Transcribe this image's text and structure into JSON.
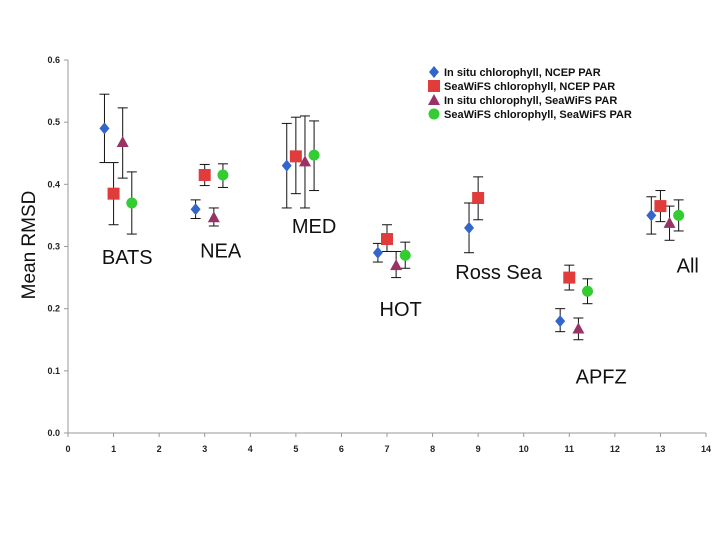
{
  "chart_data": {
    "type": "scatter",
    "title": "",
    "xlabel": "",
    "ylabel": "Mean RMSD",
    "xlim": [
      0,
      14
    ],
    "ylim": [
      0.0,
      0.6
    ],
    "x_ticks": [
      0,
      1,
      2,
      3,
      4,
      5,
      6,
      7,
      8,
      9,
      10,
      11,
      12,
      13,
      14
    ],
    "y_ticks": [
      0.0,
      0.1,
      0.2,
      0.3,
      0.4,
      0.5,
      0.6
    ],
    "x_tick_labels": [
      "0",
      "1",
      "2",
      "3",
      "4",
      "5",
      "6",
      "7",
      "8",
      "9",
      "10",
      "11",
      "12",
      "13",
      "14"
    ],
    "y_tick_labels": [
      "0.0",
      "0.1",
      "0.2",
      "0.3",
      "0.4",
      "0.5",
      "0.6"
    ],
    "grid": false,
    "legend_position": "top-right",
    "site_labels": [
      {
        "text": "BATS",
        "x": 1.3,
        "y": 0.272
      },
      {
        "text": "NEA",
        "x": 3.35,
        "y": 0.282
      },
      {
        "text": "MED",
        "x": 5.4,
        "y": 0.322
      },
      {
        "text": "HOT",
        "x": 7.3,
        "y": 0.188
      },
      {
        "text": "Ross Sea",
        "x": 9.45,
        "y": 0.248
      },
      {
        "text": "APFZ",
        "x": 11.7,
        "y": 0.08
      },
      {
        "text": "All",
        "x": 13.6,
        "y": 0.258
      }
    ],
    "series": [
      {
        "name": "In situ chlorophyll, NCEP PAR",
        "marker": "diamond",
        "color": "#3366cc",
        "points": [
          {
            "x": 0.8,
            "y": 0.49,
            "err_low": 0.435,
            "err_high": 0.545
          },
          {
            "x": 2.8,
            "y": 0.36,
            "err_low": 0.345,
            "err_high": 0.375
          },
          {
            "x": 4.8,
            "y": 0.43,
            "err_low": 0.362,
            "err_high": 0.498
          },
          {
            "x": 6.8,
            "y": 0.29,
            "err_low": 0.275,
            "err_high": 0.305
          },
          {
            "x": 8.8,
            "y": 0.33,
            "err_low": 0.29,
            "err_high": 0.37
          },
          {
            "x": 10.8,
            "y": 0.18,
            "err_low": 0.163,
            "err_high": 0.2
          },
          {
            "x": 12.8,
            "y": 0.35,
            "err_low": 0.32,
            "err_high": 0.38
          }
        ]
      },
      {
        "name": "SeaWiFS chlorophyll, NCEP PAR",
        "marker": "square",
        "color": "#e03c3c",
        "points": [
          {
            "x": 1.0,
            "y": 0.385,
            "err_low": 0.335,
            "err_high": 0.435
          },
          {
            "x": 3.0,
            "y": 0.415,
            "err_low": 0.398,
            "err_high": 0.432
          },
          {
            "x": 5.0,
            "y": 0.445,
            "err_low": 0.385,
            "err_high": 0.508
          },
          {
            "x": 7.0,
            "y": 0.312,
            "err_low": 0.292,
            "err_high": 0.335
          },
          {
            "x": 9.0,
            "y": 0.378,
            "err_low": 0.343,
            "err_high": 0.412
          },
          {
            "x": 11.0,
            "y": 0.25,
            "err_low": 0.23,
            "err_high": 0.27
          },
          {
            "x": 13.0,
            "y": 0.365,
            "err_low": 0.34,
            "err_high": 0.39
          }
        ]
      },
      {
        "name": "In situ chlorophyll, SeaWiFS PAR",
        "marker": "triangle",
        "color": "#993366",
        "points": [
          {
            "x": 1.2,
            "y": 0.468,
            "err_low": 0.41,
            "err_high": 0.523
          },
          {
            "x": 3.2,
            "y": 0.347,
            "err_low": 0.333,
            "err_high": 0.362
          },
          {
            "x": 5.2,
            "y": 0.437,
            "err_low": 0.362,
            "err_high": 0.51
          },
          {
            "x": 7.2,
            "y": 0.27,
            "err_low": 0.25,
            "err_high": 0.292
          },
          {
            "x": 11.2,
            "y": 0.168,
            "err_low": 0.15,
            "err_high": 0.185
          },
          {
            "x": 13.2,
            "y": 0.338,
            "err_low": 0.31,
            "err_high": 0.365
          }
        ]
      },
      {
        "name": "SeaWiFS chlorophyll, SeaWiFS PAR",
        "marker": "circle",
        "color": "#33cc33",
        "points": [
          {
            "x": 1.4,
            "y": 0.37,
            "err_low": 0.32,
            "err_high": 0.42
          },
          {
            "x": 3.4,
            "y": 0.415,
            "err_low": 0.395,
            "err_high": 0.433
          },
          {
            "x": 5.4,
            "y": 0.447,
            "err_low": 0.39,
            "err_high": 0.502
          },
          {
            "x": 7.4,
            "y": 0.286,
            "err_low": 0.265,
            "err_high": 0.307
          },
          {
            "x": 11.4,
            "y": 0.228,
            "err_low": 0.208,
            "err_high": 0.248
          },
          {
            "x": 13.4,
            "y": 0.35,
            "err_low": 0.325,
            "err_high": 0.375
          }
        ]
      }
    ]
  }
}
